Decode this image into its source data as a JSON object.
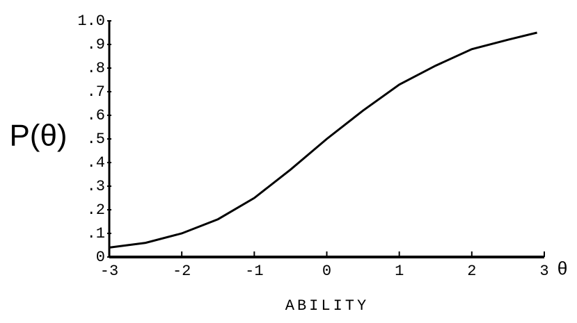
{
  "chart_data": {
    "type": "line",
    "xlabel": "ABILITY",
    "ylabel": "P(θ)",
    "annotations": [
      "θ"
    ],
    "x": [
      -3,
      -2.5,
      -2,
      -1.5,
      -1,
      -0.5,
      0,
      0.5,
      1,
      1.5,
      2,
      2.5,
      2.9
    ],
    "series": [
      {
        "name": "P(θ)",
        "color": "#000000",
        "values": [
          0.04,
          0.06,
          0.1,
          0.16,
          0.25,
          0.37,
          0.5,
          0.62,
          0.73,
          0.81,
          0.88,
          0.92,
          0.95
        ]
      }
    ],
    "xlim": [
      -3,
      3
    ],
    "xticks": [
      -3,
      -2,
      -1,
      0,
      1,
      2,
      3
    ],
    "ylim": [
      0,
      1
    ],
    "yticks": [
      0,
      {
        "value": 0.1,
        "label": ".1"
      },
      {
        "value": 0.2,
        "label": ".2"
      },
      {
        "value": 0.3,
        "label": ".3"
      },
      {
        "value": 0.4,
        "label": ".4"
      },
      {
        "value": 0.5,
        "label": ".5"
      },
      {
        "value": 0.6,
        "label": ".6"
      },
      {
        "value": 0.7,
        "label": ".7"
      },
      {
        "value": 0.8,
        "label": ".8"
      },
      {
        "value": 0.9,
        "label": ".9"
      },
      {
        "value": 1,
        "label": "1.0"
      }
    ],
    "grid": false
  }
}
